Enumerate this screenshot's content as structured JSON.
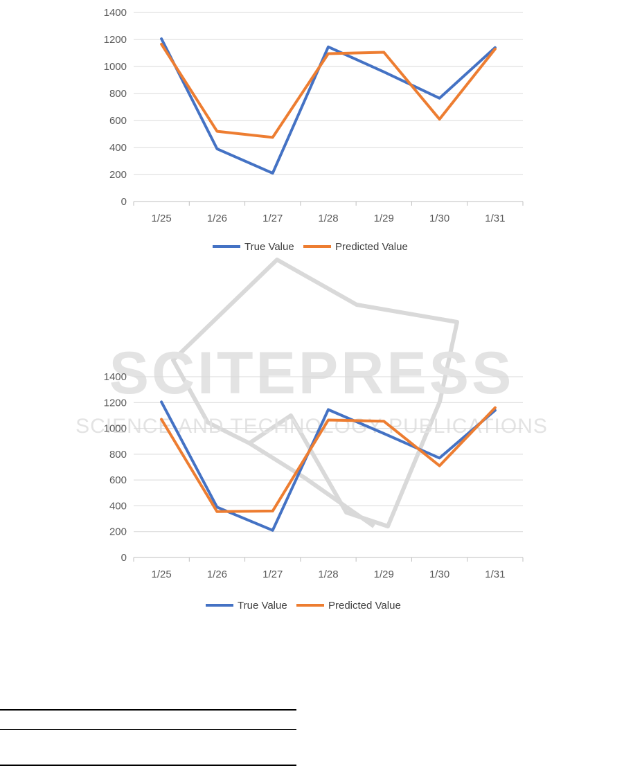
{
  "watermark": {
    "main_text": "SCITEPRESS",
    "sub_text": "SCIENCE AND TECHNOLOGY PUBLICATIONS",
    "color": "#d9d9d9"
  },
  "colors": {
    "true_value": "#4472c4",
    "predicted_value": "#ed7d31",
    "grid": "#d9d9d9",
    "axis": "#bfbfbf"
  },
  "chart_data": [
    {
      "type": "line",
      "title": "",
      "xlabel": "",
      "ylabel": "",
      "categories": [
        "1/25",
        "1/26",
        "1/27",
        "1/28",
        "1/29",
        "1/30",
        "1/31"
      ],
      "ylim": [
        0,
        1400
      ],
      "yticks": [
        0,
        200,
        400,
        600,
        800,
        1000,
        1200,
        1400
      ],
      "grid": true,
      "legend_position": "bottom",
      "series": [
        {
          "name": "True Value",
          "color": "#4472c4",
          "values": [
            1205,
            390,
            210,
            1145,
            960,
            765,
            1140
          ]
        },
        {
          "name": "Predicted Value",
          "color": "#ed7d31",
          "values": [
            1165,
            520,
            475,
            1095,
            1105,
            610,
            1130
          ]
        }
      ]
    },
    {
      "type": "line",
      "title": "",
      "xlabel": "",
      "ylabel": "",
      "categories": [
        "1/25",
        "1/26",
        "1/27",
        "1/28",
        "1/29",
        "1/30",
        "1/31"
      ],
      "ylim": [
        0,
        1400
      ],
      "yticks": [
        0,
        200,
        400,
        600,
        800,
        1000,
        1200,
        1400
      ],
      "grid": true,
      "legend_position": "bottom",
      "series": [
        {
          "name": "True Value",
          "color": "#4472c4",
          "values": [
            1205,
            390,
            210,
            1145,
            960,
            770,
            1140
          ]
        },
        {
          "name": "Predicted Value",
          "color": "#ed7d31",
          "values": [
            1070,
            355,
            360,
            1065,
            1055,
            710,
            1160
          ]
        }
      ]
    }
  ]
}
